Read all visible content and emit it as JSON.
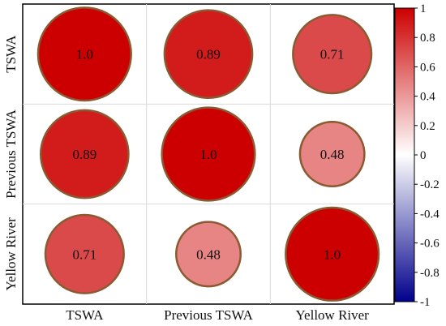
{
  "chart_data": {
    "type": "heatmap",
    "subtype": "correlation-circle-matrix",
    "title": "",
    "rows": [
      "TSWA",
      "Previous TSWA",
      "Yellow River"
    ],
    "columns": [
      "TSWA",
      "Previous TSWA",
      "Yellow River"
    ],
    "values": [
      [
        1.0,
        0.89,
        0.71
      ],
      [
        0.89,
        1.0,
        0.48
      ],
      [
        0.71,
        0.48,
        1.0
      ]
    ],
    "value_labels": [
      [
        "1.0",
        "0.89",
        "0.71"
      ],
      [
        "0.89",
        "1.0",
        "0.48"
      ],
      [
        "0.71",
        "0.48",
        "1.0"
      ]
    ],
    "colorbar": {
      "range": [
        -1,
        1
      ],
      "ticks": [
        "1",
        "0.8",
        "0.6",
        "0.4",
        "0.2",
        "0",
        "-0.2",
        "-0.4",
        "-0.6",
        "-0.8",
        "-1"
      ],
      "colors": {
        "low": "#00008b",
        "mid": "#ffffff",
        "high": "#cc0000"
      }
    },
    "grid": true,
    "legend": "right"
  }
}
